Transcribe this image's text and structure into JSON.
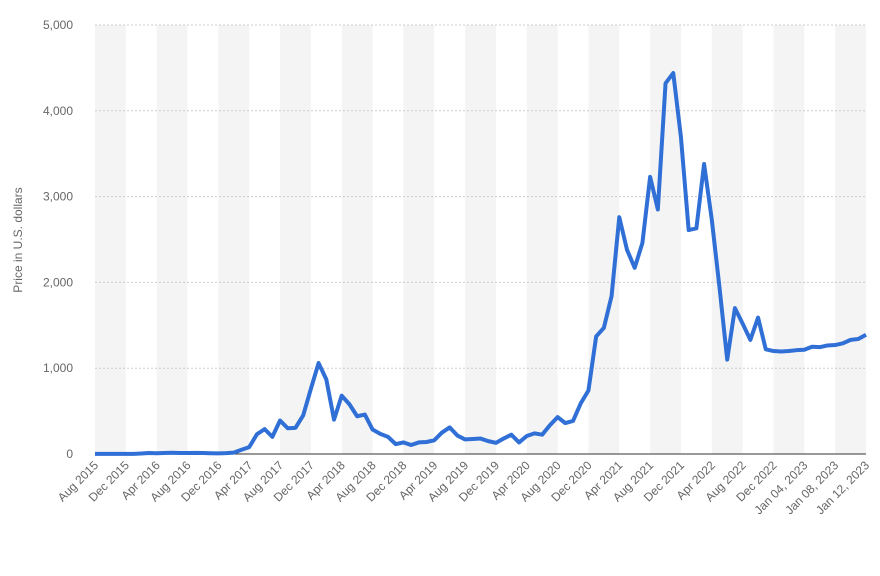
{
  "chart_data": {
    "type": "line",
    "y_label": "Price in U.S. dollars",
    "categories": [
      "Aug 2015",
      null,
      null,
      null,
      "Dec 2015",
      null,
      null,
      null,
      "Apr 2016",
      null,
      null,
      null,
      "Aug 2016",
      null,
      null,
      null,
      "Dec 2016",
      null,
      null,
      null,
      "Apr 2017",
      null,
      null,
      null,
      "Aug 2017",
      null,
      null,
      null,
      "Dec 2017",
      null,
      null,
      null,
      "Apr 2018",
      null,
      null,
      null,
      "Aug 2018",
      null,
      null,
      null,
      "Dec 2018",
      null,
      null,
      null,
      "Apr 2019",
      null,
      null,
      null,
      "Aug 2019",
      null,
      null,
      null,
      "Dec 2019",
      null,
      null,
      null,
      "Apr 2020",
      null,
      null,
      null,
      "Aug 2020",
      null,
      null,
      null,
      "Dec 2020",
      null,
      null,
      null,
      "Apr 2021",
      null,
      null,
      null,
      "Aug 2021",
      null,
      null,
      null,
      "Dec 2021",
      null,
      null,
      null,
      "Apr 2022",
      null,
      null,
      null,
      "Aug 2022",
      null,
      null,
      null,
      "Dec 2022",
      null,
      null,
      null,
      "Jan 04, 2023",
      null,
      null,
      null,
      "Jan 08, 2023",
      null,
      null,
      null,
      "Jan 12, 2023"
    ],
    "series": [
      {
        "color": "#2f6fd6",
        "values": [
          1,
          1,
          1,
          1,
          1,
          2,
          6,
          11,
          9,
          12,
          14,
          12,
          12,
          13,
          11,
          9,
          8,
          10,
          16,
          50,
          80,
          230,
          290,
          200,
          390,
          300,
          305,
          450,
          760,
          1060,
          870,
          400,
          680,
          580,
          440,
          460,
          285,
          235,
          200,
          115,
          135,
          105,
          135,
          140,
          160,
          250,
          310,
          215,
          170,
          175,
          180,
          150,
          130,
          180,
          225,
          135,
          210,
          240,
          225,
          335,
          430,
          360,
          385,
          590,
          740,
          1370,
          1470,
          1840,
          2760,
          2380,
          2170,
          2460,
          3230,
          2850,
          4320,
          4440,
          3690,
          2610,
          2630,
          3380,
          2730,
          1940,
          1100,
          1700,
          1520,
          1330,
          1590,
          1220,
          1200,
          1195,
          1200,
          1210,
          1215,
          1250,
          1245,
          1265,
          1270,
          1290,
          1330,
          1340,
          1390
        ]
      }
    ],
    "ylim": [
      0,
      5000
    ],
    "yticks": [
      0,
      {
        "value": 1000,
        "label": "1,000"
      },
      {
        "value": 2000,
        "label": "2,000"
      },
      {
        "value": 3000,
        "label": "3,000"
      },
      {
        "value": 4000,
        "label": "4,000"
      },
      {
        "value": 5000,
        "label": "5,000"
      }
    ],
    "grid": true
  }
}
